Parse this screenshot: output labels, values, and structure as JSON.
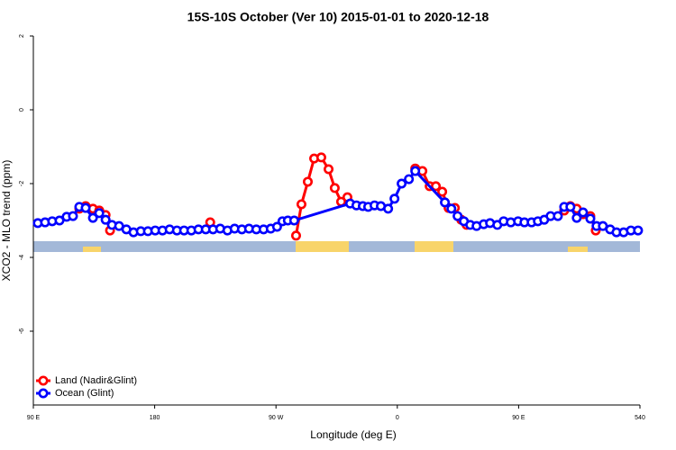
{
  "chart_data": {
    "type": "line",
    "title": "15S-10S October (Ver 10)   2015-01-01 to 2020-12-18",
    "x_label": "Longitude (deg E)",
    "y_label": "XCO2 - MLO trend (ppm)",
    "xlim": [
      90,
      540
    ],
    "ylim": [
      -8,
      2
    ],
    "xticks": [
      {
        "value": 90,
        "label": "90 E"
      },
      180,
      {
        "value": 270,
        "label": "90 W"
      },
      {
        "value": 360,
        "label": "0"
      },
      {
        "value": 450,
        "label": "90 E"
      },
      540
    ],
    "yticks": [
      2,
      0,
      -2,
      -4,
      -6
    ],
    "legend": "bottomleft",
    "series": [
      {
        "name": "Land (Nadir&Glint)",
        "color": "#ff0000",
        "x": [
          124.1,
          128.8,
          134.2,
          138.9,
          143.6,
          146.9,
          null,
          221.2,
          null,
          284.9,
          288.9,
          293.6,
          298.3,
          303.6,
          309.0,
          313.6,
          318.3,
          323.0,
          null,
          373.3,
          378.6,
          384.0,
          388.6,
          393.3,
          398.0,
          402.7,
          407.4,
          411.4,
          null,
          483.8,
          488.4,
          493.1,
          497.8,
          503.2,
          507.2
        ],
        "values": [
          -2.68,
          -2.61,
          -2.68,
          -2.73,
          -2.85,
          -3.27,
          null,
          -3.05,
          null,
          -3.41,
          -2.56,
          -1.95,
          -1.32,
          -1.29,
          -1.61,
          -2.12,
          -2.49,
          -2.37,
          null,
          -1.59,
          -1.66,
          -2.07,
          -2.07,
          -2.22,
          -2.66,
          -2.66,
          -2.98,
          -3.12,
          null,
          -2.73,
          -2.61,
          -2.68,
          -2.83,
          -2.88,
          -3.27
        ]
      },
      {
        "name": "Ocean (Glint)",
        "color": "#0000ff",
        "x": [
          93.3,
          98.7,
          104.0,
          109.4,
          114.7,
          119.4,
          124.1,
          128.8,
          134.2,
          138.9,
          143.6,
          148.3,
          153.6,
          159.0,
          164.3,
          169.7,
          175.0,
          180.4,
          185.8,
          191.1,
          196.5,
          201.8,
          207.2,
          212.5,
          217.9,
          223.3,
          228.6,
          234.0,
          239.3,
          244.7,
          250.0,
          255.4,
          260.8,
          266.1,
          270.8,
          274.8,
          278.8,
          283.5,
          325.0,
          329.7,
          334.4,
          338.4,
          343.1,
          347.8,
          353.2,
          357.9,
          363.2,
          368.6,
          373.3,
          395.3,
          400.1,
          404.7,
          409.4,
          414.1,
          418.8,
          424.1,
          428.8,
          434.2,
          438.9,
          444.2,
          449.6,
          454.3,
          459.6,
          464.3,
          469.0,
          473.7,
          479.1,
          483.8,
          488.4,
          493.1,
          497.8,
          503.2,
          507.8,
          512.5,
          517.9,
          522.6,
          527.9,
          533.3,
          538.6
        ],
        "values": [
          -3.07,
          -3.05,
          -3.02,
          -3.0,
          -2.9,
          -2.88,
          -2.63,
          -2.66,
          -2.93,
          -2.8,
          -2.98,
          -3.12,
          -3.15,
          -3.24,
          -3.32,
          -3.29,
          -3.29,
          -3.27,
          -3.27,
          -3.24,
          -3.27,
          -3.27,
          -3.27,
          -3.24,
          -3.24,
          -3.24,
          -3.22,
          -3.27,
          -3.22,
          -3.24,
          -3.22,
          -3.24,
          -3.24,
          -3.22,
          -3.17,
          -3.02,
          -3.0,
          -3.0,
          -2.54,
          -2.59,
          -2.61,
          -2.63,
          -2.59,
          -2.61,
          -2.68,
          -2.41,
          -2.0,
          -1.88,
          -1.66,
          -2.51,
          -2.68,
          -2.88,
          -3.02,
          -3.12,
          -3.15,
          -3.1,
          -3.07,
          -3.12,
          -3.02,
          -3.05,
          -3.02,
          -3.05,
          -3.05,
          -3.02,
          -2.98,
          -2.88,
          -2.88,
          -2.63,
          -2.63,
          -2.93,
          -2.78,
          -2.95,
          -3.15,
          -3.15,
          -3.24,
          -3.32,
          -3.32,
          -3.27,
          -3.27
        ]
      }
    ]
  }
}
